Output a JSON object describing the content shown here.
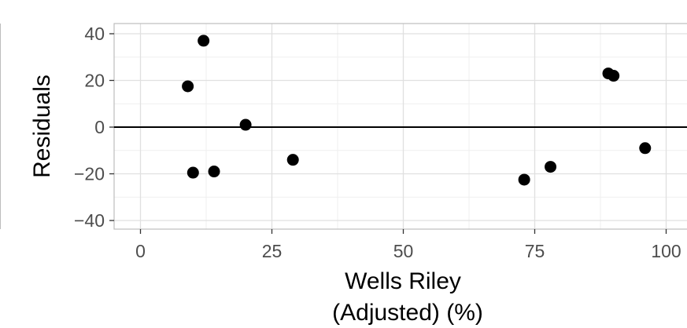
{
  "chart_data": {
    "type": "scatter",
    "title": "",
    "xlabel": [
      "Wells Riley",
      "(Adjusted) (%)"
    ],
    "ylabel": "Residuals",
    "xlim": [
      -5,
      101
    ],
    "ylim": [
      -44,
      44
    ],
    "x_ticks": [
      0,
      25,
      50,
      75,
      100
    ],
    "x_tick_labels": [
      "0",
      "25",
      "50",
      "75",
      "100"
    ],
    "y_ticks": [
      40,
      20,
      0,
      -20,
      -40
    ],
    "y_tick_labels": [
      "40",
      "20",
      "0",
      "−20",
      "−40"
    ],
    "reference_line_y": 0,
    "grid": true,
    "legend": "none",
    "series": [
      {
        "points": [
          {
            "x": 9,
            "y": 17.5
          },
          {
            "x": 12,
            "y": 37
          },
          {
            "x": 10,
            "y": -19.5
          },
          {
            "x": 14,
            "y": -19
          },
          {
            "x": 20,
            "y": 1
          },
          {
            "x": 29,
            "y": -14
          },
          {
            "x": 73,
            "y": -22.5
          },
          {
            "x": 78,
            "y": -17
          },
          {
            "x": 89,
            "y": 23
          },
          {
            "x": 90,
            "y": 22
          },
          {
            "x": 96,
            "y": -9
          }
        ]
      }
    ],
    "colors": {
      "panel_border": "#bdbdbd",
      "grid_major": "#e0e0e0",
      "grid_minor": "#efefef",
      "reference_line": "#000000",
      "point": "#000000",
      "tick": "#4d4d4d"
    }
  }
}
